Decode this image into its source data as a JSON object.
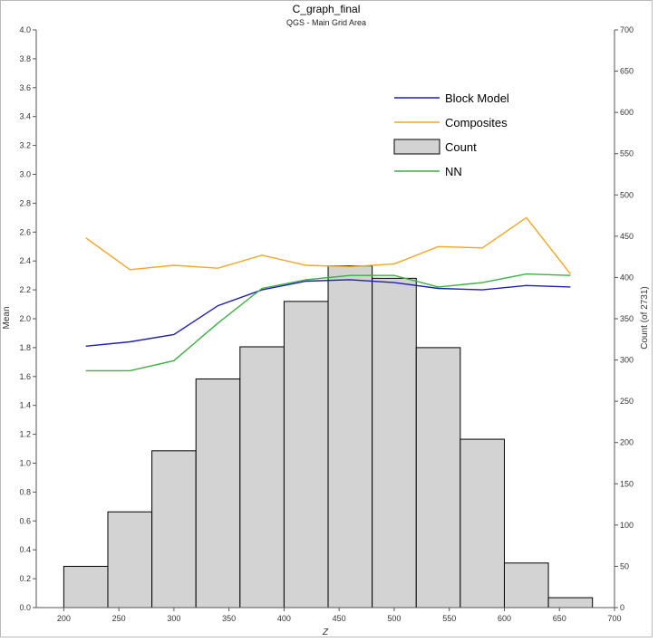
{
  "chart_data": {
    "type": "bar",
    "title": "C_graph_final",
    "subtitle": "QGS - Main Grid Area",
    "xlabel": "Z",
    "ylabel": "Mean",
    "y2label": "Count (of 2731)",
    "xlim": [
      175,
      700
    ],
    "ylim": [
      0,
      4.0
    ],
    "y2lim": [
      0,
      700
    ],
    "x_ticks": [
      200,
      250,
      300,
      350,
      400,
      450,
      500,
      550,
      600,
      650,
      700
    ],
    "y_ticks": [
      0.0,
      0.2,
      0.4,
      0.6,
      0.8,
      1.0,
      1.2,
      1.4,
      1.6,
      1.8,
      2.0,
      2.2,
      2.4,
      2.6,
      2.8,
      3.0,
      3.2,
      3.4,
      3.6,
      3.8,
      4.0
    ],
    "y2_ticks": [
      0,
      50,
      100,
      150,
      200,
      250,
      300,
      350,
      400,
      450,
      500,
      550,
      600,
      650,
      700
    ],
    "grid": false,
    "legend_position": "top-right",
    "histogram": {
      "name": "Count",
      "color": "#d3d3d3",
      "edge_color": "#000000",
      "bins": [
        {
          "x0": 200,
          "x1": 240,
          "count": 50
        },
        {
          "x0": 240,
          "x1": 280,
          "count": 116
        },
        {
          "x0": 280,
          "x1": 320,
          "count": 190
        },
        {
          "x0": 320,
          "x1": 360,
          "count": 277
        },
        {
          "x0": 360,
          "x1": 400,
          "count": 316
        },
        {
          "x0": 400,
          "x1": 440,
          "count": 371
        },
        {
          "x0": 440,
          "x1": 480,
          "count": 414
        },
        {
          "x0": 480,
          "x1": 520,
          "count": 399
        },
        {
          "x0": 520,
          "x1": 560,
          "count": 315
        },
        {
          "x0": 560,
          "x1": 600,
          "count": 204
        },
        {
          "x0": 600,
          "x1": 640,
          "count": 54
        },
        {
          "x0": 640,
          "x1": 680,
          "count": 12
        }
      ]
    },
    "series": [
      {
        "name": "Block Model",
        "color": "#1f1fb4",
        "x": [
          220,
          260,
          300,
          340,
          380,
          420,
          460,
          500,
          540,
          580,
          620,
          660
        ],
        "values": [
          1.81,
          1.84,
          1.89,
          2.09,
          2.2,
          2.26,
          2.27,
          2.25,
          2.21,
          2.2,
          2.23,
          2.22
        ]
      },
      {
        "name": "Composites",
        "color": "#f5a623",
        "x": [
          220,
          260,
          300,
          340,
          380,
          420,
          460,
          500,
          540,
          580,
          620,
          660
        ],
        "values": [
          2.56,
          2.34,
          2.37,
          2.35,
          2.44,
          2.37,
          2.36,
          2.38,
          2.5,
          2.49,
          2.7,
          2.31
        ]
      },
      {
        "name": "NN",
        "color": "#3cb043",
        "x": [
          220,
          260,
          300,
          340,
          380,
          420,
          460,
          500,
          540,
          580,
          620,
          660
        ],
        "values": [
          1.64,
          1.64,
          1.71,
          1.97,
          2.21,
          2.27,
          2.3,
          2.3,
          2.22,
          2.25,
          2.31,
          2.3
        ]
      }
    ],
    "legend": [
      {
        "label": "Block Model",
        "kind": "line",
        "color": "#1f1fb4"
      },
      {
        "label": "Composites",
        "kind": "line",
        "color": "#f5a623"
      },
      {
        "label": "Count",
        "kind": "box",
        "color": "#d3d3d3"
      },
      {
        "label": "NN",
        "kind": "line",
        "color": "#3cb043"
      }
    ]
  }
}
